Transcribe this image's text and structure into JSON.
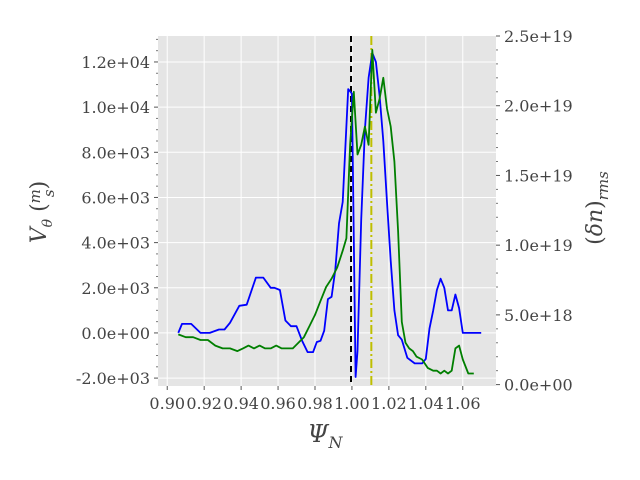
{
  "chart_data": {
    "type": "line",
    "title": "",
    "xlabel": "Ψ_N",
    "ylabel_left": "V_θ (m/s)",
    "ylabel_right": "(δn)_rms",
    "xlim": [
      0.895,
      1.078
    ],
    "ylim_left": [
      -2350,
      13150
    ],
    "ylim_right": [
      -1e+17,
      2.5e+19
    ],
    "grid": true,
    "x_ticks": [
      0.9,
      0.92,
      0.94,
      0.96,
      0.98,
      1.0,
      1.02,
      1.04,
      1.06
    ],
    "x_tick_labels": [
      "0.90",
      "0.92",
      "0.94",
      "0.96",
      "0.98",
      "1.00",
      "1.02",
      "1.04",
      "1.06"
    ],
    "y_left_ticks": [
      -2000,
      0,
      2000,
      4000,
      6000,
      8000,
      10000,
      12000
    ],
    "y_left_tick_labels": [
      "-2.0e+03",
      "0.0e+00",
      "2.0e+03",
      "4.0e+03",
      "6.0e+03",
      "8.0e+03",
      "1.0e+04",
      "1.2e+04"
    ],
    "y_right_ticks": [
      0,
      5e+18,
      1e+19,
      1.5e+19,
      2e+19,
      2.5e+19
    ],
    "y_right_tick_labels": [
      "0.0e+00",
      "5.0e+18",
      "1.0e+19",
      "1.5e+19",
      "2.0e+19",
      "2.5e+19"
    ],
    "vlines": [
      {
        "x": 0.9995,
        "color": "#000000",
        "style": "dashed"
      },
      {
        "x": 1.0105,
        "color": "#bfbf00",
        "style": "dashdot"
      }
    ],
    "series": [
      {
        "axis": "left",
        "color": "#0000ff",
        "x": [
          0.906,
          0.908,
          0.913,
          0.918,
          0.923,
          0.928,
          0.931,
          0.934,
          0.939,
          0.943,
          0.948,
          0.952,
          0.956,
          0.958,
          0.961,
          0.964,
          0.967,
          0.97,
          0.973,
          0.976,
          0.979,
          0.981,
          0.983,
          0.985,
          0.987,
          0.989,
          0.991,
          0.993,
          0.995,
          0.998,
          1.0,
          1.002,
          1.003,
          1.005,
          1.007,
          1.009,
          1.011,
          1.013,
          1.015,
          1.017,
          1.019,
          1.021,
          1.023,
          1.025,
          1.027,
          1.03,
          1.034,
          1.038,
          1.04,
          1.042,
          1.044,
          1.046,
          1.048,
          1.05,
          1.052,
          1.054,
          1.056,
          1.058,
          1.06,
          1.063,
          1.067,
          1.07
        ],
        "y": [
          0,
          400,
          400,
          0,
          0,
          150,
          150,
          450,
          1200,
          1250,
          2450,
          2450,
          2000,
          2000,
          1900,
          550,
          300,
          300,
          -350,
          -850,
          -850,
          -400,
          -350,
          100,
          1500,
          1600,
          2800,
          4850,
          5800,
          10800,
          10600,
          -1950,
          -800,
          5000,
          9000,
          11300,
          12400,
          12000,
          10500,
          8500,
          5800,
          3200,
          1000,
          -100,
          -300,
          -1100,
          -1350,
          -1350,
          -1150,
          200,
          1000,
          1900,
          2400,
          2000,
          1000,
          1000,
          1700,
          1100,
          0,
          0,
          0,
          0
        ]
      },
      {
        "axis": "right",
        "color": "#007f00",
        "x": [
          0.906,
          0.91,
          0.914,
          0.918,
          0.922,
          0.926,
          0.93,
          0.934,
          0.938,
          0.941,
          0.944,
          0.947,
          0.95,
          0.953,
          0.956,
          0.959,
          0.962,
          0.965,
          0.968,
          0.971,
          0.974,
          0.977,
          0.98,
          0.983,
          0.986,
          0.989,
          0.992,
          0.995,
          0.997,
          0.999,
          1.001,
          1.003,
          1.005,
          1.007,
          1.009,
          1.011,
          1.013,
          1.015,
          1.017,
          1.019,
          1.021,
          1.023,
          1.025,
          1.027,
          1.029,
          1.031,
          1.033,
          1.035,
          1.038,
          1.041,
          1.044,
          1.046,
          1.048,
          1.05,
          1.052,
          1.054,
          1.056,
          1.058,
          1.06,
          1.063,
          1.066
        ],
        "y": [
          3.6e+18,
          3.4e+18,
          3.4e+18,
          3.2e+18,
          3.2e+18,
          2.8e+18,
          2.6e+18,
          2.6e+18,
          2.4e+18,
          2.6e+18,
          2.8e+18,
          2.6e+18,
          2.8e+18,
          2.6e+18,
          2.6e+18,
          2.8e+18,
          2.6e+18,
          2.6e+18,
          2.6e+18,
          3e+18,
          3.4e+18,
          4.2e+18,
          5e+18,
          6e+18,
          7e+18,
          7.6e+18,
          8.4e+18,
          9.6e+18,
          1.05e+19,
          1.72e+19,
          2.1e+19,
          1.65e+19,
          1.72e+19,
          1.85e+19,
          1.72e+19,
          2.4e+19,
          1.95e+19,
          2.05e+19,
          2.2e+19,
          1.98e+19,
          1.85e+19,
          1.6e+19,
          1.1e+19,
          4.5e+18,
          3e+18,
          2.6e+18,
          2.4e+18,
          2e+18,
          1.8e+18,
          1.2e+18,
          1e+18,
          1e+18,
          8e+17,
          1e+18,
          8e+17,
          1e+18,
          2.6e+18,
          2.8e+18,
          1.8e+18,
          8e+17,
          8e+17
        ]
      }
    ]
  }
}
